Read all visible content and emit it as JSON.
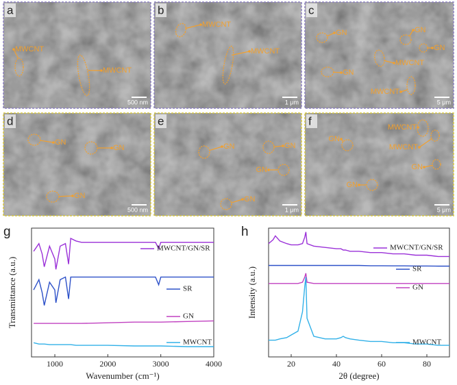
{
  "sem_panels": [
    {
      "letter": "a",
      "scale_bar": "500 nm",
      "annotations": [
        "MWCNT",
        "MWCNT"
      ]
    },
    {
      "letter": "b",
      "scale_bar": "1 μm",
      "annotations": [
        "MWCNT",
        "MWCNT"
      ]
    },
    {
      "letter": "c",
      "scale_bar": "5 μm",
      "annotations": [
        "GN",
        "GN",
        "GN",
        "MWCNT",
        "GN",
        "MWCNT"
      ]
    },
    {
      "letter": "d",
      "scale_bar": "500 nm",
      "annotations": [
        "GN",
        "GN",
        "GN"
      ]
    },
    {
      "letter": "e",
      "scale_bar": "1 μm",
      "annotations": [
        "GN",
        "GN",
        "GN",
        "GN"
      ]
    },
    {
      "letter": "f",
      "scale_bar": "5 μm",
      "annotations": [
        "MWCNT",
        "MWCNT",
        "GN",
        "GN",
        "GN"
      ]
    }
  ],
  "chart_data": [
    {
      "type": "line",
      "panel": "g",
      "x_label": "Wavenumber (cm⁻¹)",
      "y_label": "Transmittance (a.u.)",
      "x": [
        600,
        700,
        760,
        800,
        900,
        1000,
        1020,
        1100,
        1200,
        1260,
        1300,
        1400,
        1500,
        2000,
        2500,
        2900,
        2960,
        3000,
        3500,
        4000
      ],
      "xlim": [
        560,
        4000
      ],
      "xticks": [
        1000,
        2000,
        3000,
        4000
      ],
      "ylim": [
        0,
        100
      ],
      "series": [
        {
          "name": "MWCNT/GN/SR",
          "color": "#9a30d8",
          "values": [
            82,
            88,
            80,
            70,
            86,
            76,
            68,
            86,
            88,
            72,
            92,
            90,
            89,
            89,
            89,
            89,
            84,
            89,
            89,
            89
          ]
        },
        {
          "name": "SR",
          "color": "#2c50c8",
          "values": [
            52,
            60,
            50,
            40,
            58,
            52,
            42,
            60,
            62,
            45,
            62,
            62,
            62,
            62,
            62,
            62,
            56,
            62,
            62,
            62
          ]
        },
        {
          "name": "GN",
          "color": "#c040c0",
          "values": [
            26,
            26,
            26,
            26,
            26,
            26,
            26,
            26,
            26,
            26,
            26,
            26,
            26,
            26.5,
            27,
            27,
            27,
            27,
            27.5,
            28
          ]
        },
        {
          "name": "MWCNT",
          "color": "#30b0e8",
          "values": [
            11,
            10,
            10,
            10,
            9.5,
            9.5,
            9.5,
            9.5,
            9.5,
            9.5,
            9.5,
            9,
            9,
            9,
            8.5,
            8.5,
            8.5,
            8.5,
            8,
            8
          ]
        }
      ]
    },
    {
      "type": "line",
      "panel": "h",
      "x_label": "2θ (degree)",
      "y_label": "Intensity (a.u.)",
      "x": [
        10,
        12,
        13,
        15,
        18,
        20,
        23,
        25,
        26,
        26.5,
        27,
        30,
        35,
        40,
        42,
        43,
        44,
        46,
        50,
        55,
        60,
        65,
        70,
        75,
        80,
        85,
        90
      ],
      "xlim": [
        10,
        90
      ],
      "xticks": [
        20,
        40,
        60,
        80
      ],
      "ylim": [
        0,
        100
      ],
      "series": [
        {
          "name": "MWCNT/GN/SR",
          "color": "#9a30d8",
          "values": [
            88,
            91,
            94,
            90,
            88,
            87,
            87,
            88,
            93,
            97,
            88,
            86,
            85,
            84,
            84,
            83,
            83,
            82,
            82,
            81,
            81,
            80,
            80,
            79,
            79,
            78,
            78
          ]
        },
        {
          "name": "SR",
          "color": "#2c50c8",
          "values": [
            71,
            71,
            71,
            71,
            71,
            71,
            71,
            71,
            71,
            71,
            71,
            71,
            71,
            71,
            71,
            71,
            71,
            71,
            71,
            70.8,
            70.8,
            70.7,
            70.7,
            70.6,
            70.6,
            70.5,
            70.5
          ]
        },
        {
          "name": "GN",
          "color": "#c040c0",
          "values": [
            57,
            57,
            57,
            57,
            57,
            57,
            57,
            58,
            62,
            65,
            58,
            57,
            57,
            57,
            57,
            57,
            57,
            57,
            57,
            57,
            57,
            57,
            57,
            57,
            57,
            57,
            57
          ]
        },
        {
          "name": "MWCNT",
          "color": "#30b0e8",
          "values": [
            13,
            13,
            13,
            14,
            15,
            17,
            20,
            35,
            55,
            62,
            30,
            16,
            14,
            14,
            15,
            16,
            15,
            14,
            13,
            12,
            12,
            11,
            11,
            10,
            10,
            9,
            9
          ]
        }
      ]
    }
  ]
}
